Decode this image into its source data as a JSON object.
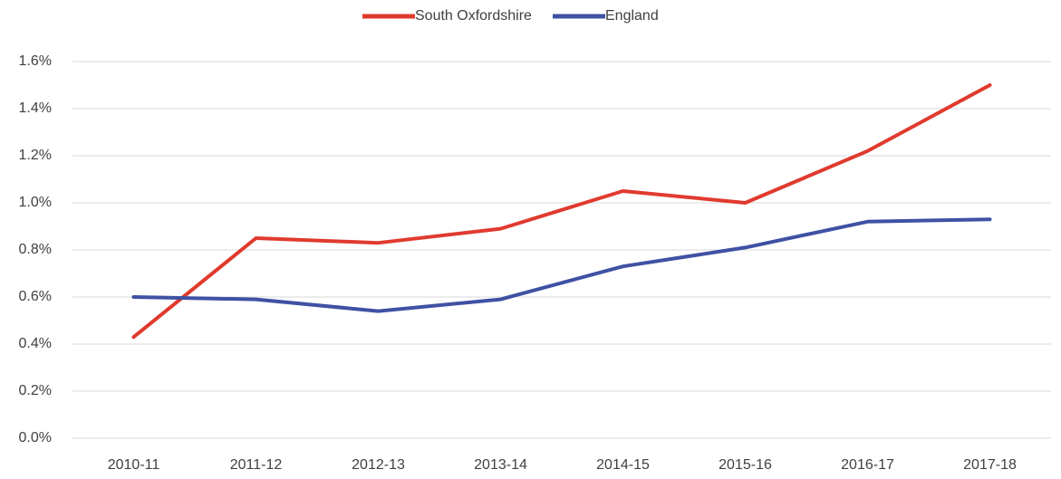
{
  "chart_data": {
    "type": "line",
    "categories": [
      "2010-11",
      "2011-12",
      "2012-13",
      "2013-14",
      "2014-15",
      "2015-16",
      "2016-17",
      "2017-18"
    ],
    "series": [
      {
        "name": "South Oxfordshire",
        "color": "#e03a2e",
        "values": [
          0.43,
          0.85,
          0.83,
          0.89,
          1.05,
          1.0,
          1.22,
          1.5
        ]
      },
      {
        "name": "England",
        "color": "#3f51a3",
        "values": [
          0.6,
          0.59,
          0.54,
          0.59,
          0.73,
          0.81,
          0.92,
          0.93
        ]
      }
    ],
    "ylim": [
      0,
      1.6
    ],
    "yticks": [
      {
        "value": 0,
        "label": "0.0%"
      },
      {
        "value": 0.2,
        "label": "0.2%"
      },
      {
        "value": 0.4,
        "label": "0.4%"
      },
      {
        "value": 0.6,
        "label": "0.6%"
      },
      {
        "value": 0.8,
        "label": "0.8%"
      },
      {
        "value": 1.0,
        "label": "1.0%"
      },
      {
        "value": 1.2,
        "label": "1.2%"
      },
      {
        "value": 1.4,
        "label": "1.4%"
      },
      {
        "value": 1.6,
        "label": "1.6%"
      }
    ],
    "grid": true,
    "legend": "top"
  }
}
